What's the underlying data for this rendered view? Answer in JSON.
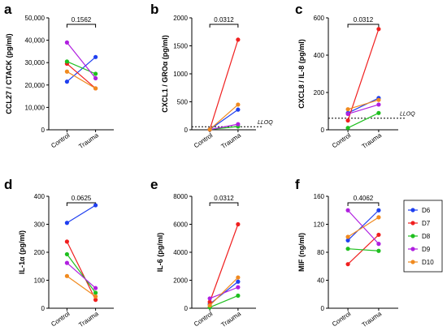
{
  "legend": {
    "items": [
      {
        "name": "D6",
        "color": "#1f3ff0"
      },
      {
        "name": "D7",
        "color": "#f01f1f"
      },
      {
        "name": "D8",
        "color": "#1fbf1f"
      },
      {
        "name": "D9",
        "color": "#b01fe0"
      },
      {
        "name": "D10",
        "color": "#f08a1f"
      }
    ]
  },
  "chart_data": [
    {
      "type": "line",
      "panel": "a",
      "ylabel": "CCL27 / CTACK (pg/ml)",
      "categories": [
        "Control",
        "Trauma"
      ],
      "ylim": [
        0,
        50000
      ],
      "yticks": [
        "0",
        "10,000",
        "20,000",
        "30,000",
        "40,000",
        "50,000"
      ],
      "ytick_values": [
        0,
        10000,
        20000,
        30000,
        40000,
        50000
      ],
      "p_value": "0.1562",
      "series": [
        {
          "name": "D6",
          "values": [
            21500,
            32500
          ]
        },
        {
          "name": "D7",
          "values": [
            29500,
            18500
          ]
        },
        {
          "name": "D8",
          "values": [
            30500,
            25000
          ]
        },
        {
          "name": "D9",
          "values": [
            39000,
            23000
          ]
        },
        {
          "name": "D10",
          "values": [
            26000,
            18500
          ]
        }
      ]
    },
    {
      "type": "line",
      "panel": "b",
      "ylabel": "CXCL1 / GROα (pg/ml)",
      "categories": [
        "Control",
        "Trauma"
      ],
      "ylim": [
        0,
        2000
      ],
      "yticks": [
        "0",
        "500",
        "1000",
        "1500",
        "2000"
      ],
      "ytick_values": [
        0,
        500,
        1000,
        1500,
        2000
      ],
      "p_value": "0.0312",
      "lloq": {
        "value": 55,
        "label": "LLOQ"
      },
      "series": [
        {
          "name": "D6",
          "values": [
            5,
            360
          ]
        },
        {
          "name": "D7",
          "values": [
            5,
            1610
          ]
        },
        {
          "name": "D8",
          "values": [
            5,
            60
          ]
        },
        {
          "name": "D9",
          "values": [
            5,
            100
          ]
        },
        {
          "name": "D10",
          "values": [
            5,
            450
          ]
        }
      ]
    },
    {
      "type": "line",
      "panel": "c",
      "ylabel": "CXCL8 / IL-8 (pg/ml)",
      "categories": [
        "Control",
        "Trauma"
      ],
      "ylim": [
        0,
        600
      ],
      "yticks": [
        "0",
        "200",
        "400",
        "600"
      ],
      "ytick_values": [
        0,
        200,
        400,
        600
      ],
      "p_value": "0.0312",
      "lloq": {
        "value": 62,
        "label": "LLOQ"
      },
      "series": [
        {
          "name": "D6",
          "values": [
            90,
            170
          ]
        },
        {
          "name": "D7",
          "values": [
            50,
            540
          ]
        },
        {
          "name": "D8",
          "values": [
            10,
            90
          ]
        },
        {
          "name": "D9",
          "values": [
            85,
            135
          ]
        },
        {
          "name": "D10",
          "values": [
            110,
            160
          ]
        }
      ]
    },
    {
      "type": "line",
      "panel": "d",
      "ylabel": "IL-1α (pg/ml)",
      "categories": [
        "Control",
        "Trauma"
      ],
      "ylim": [
        0,
        400
      ],
      "yticks": [
        "0",
        "100",
        "200",
        "300",
        "400"
      ],
      "ytick_values": [
        0,
        100,
        200,
        300,
        400
      ],
      "p_value": "0.0625",
      "series": [
        {
          "name": "D6",
          "values": [
            305,
            368
          ]
        },
        {
          "name": "D7",
          "values": [
            238,
            30
          ]
        },
        {
          "name": "D8",
          "values": [
            193,
            55
          ]
        },
        {
          "name": "D9",
          "values": [
            162,
            72
          ]
        },
        {
          "name": "D10",
          "values": [
            115,
            42
          ]
        }
      ]
    },
    {
      "type": "line",
      "panel": "e",
      "ylabel": "IL-6 (pg/ml)",
      "categories": [
        "Control",
        "Trauma"
      ],
      "ylim": [
        0,
        8000
      ],
      "yticks": [
        "0",
        "2000",
        "4000",
        "6000",
        "8000"
      ],
      "ytick_values": [
        0,
        2000,
        4000,
        6000,
        8000
      ],
      "p_value": "0.0312",
      "series": [
        {
          "name": "D6",
          "values": [
            300,
            1900
          ]
        },
        {
          "name": "D7",
          "values": [
            450,
            6000
          ]
        },
        {
          "name": "D8",
          "values": [
            60,
            900
          ]
        },
        {
          "name": "D9",
          "values": [
            700,
            1500
          ]
        },
        {
          "name": "D10",
          "values": [
            200,
            2200
          ]
        }
      ]
    },
    {
      "type": "line",
      "panel": "f",
      "ylabel": "MIF (ng/ml)",
      "categories": [
        "Control",
        "Trauma"
      ],
      "ylim": [
        0,
        160
      ],
      "yticks": [
        "0",
        "40",
        "80",
        "120",
        "160"
      ],
      "ytick_values": [
        0,
        40,
        80,
        120,
        160
      ],
      "p_value": "0.4062",
      "series": [
        {
          "name": "D6",
          "values": [
            97,
            140
          ]
        },
        {
          "name": "D7",
          "values": [
            63,
            105
          ]
        },
        {
          "name": "D8",
          "values": [
            85,
            82
          ]
        },
        {
          "name": "D9",
          "values": [
            140,
            92
          ]
        },
        {
          "name": "D10",
          "values": [
            102,
            130
          ]
        }
      ]
    }
  ]
}
